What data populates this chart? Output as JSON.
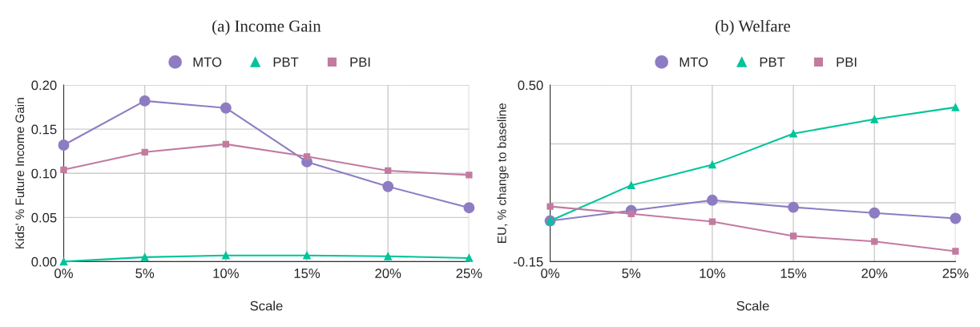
{
  "chart_data": [
    {
      "type": "line",
      "title": "(a) Income Gain",
      "xlabel": "Scale",
      "ylabel": "Kids' % Future Income Gain",
      "categories": [
        "0%",
        "5%",
        "10%",
        "15%",
        "20%",
        "25%"
      ],
      "ylim": [
        0,
        0.2
      ],
      "yticks": [
        {
          "value": 0,
          "label": "0.00"
        },
        {
          "value": 0.05,
          "label": "0.05"
        },
        {
          "value": 0.1,
          "label": "0.10"
        },
        {
          "value": 0.15,
          "label": "0.15"
        },
        {
          "value": 0.2,
          "label": "0.20"
        }
      ],
      "grid": true,
      "legend": "top",
      "series": [
        {
          "name": "MTO",
          "color": "#8e7cc3",
          "marker": "circle",
          "values": [
            0.132,
            0.182,
            0.174,
            0.113,
            0.085,
            0.061
          ]
        },
        {
          "name": "PBT",
          "color": "#00c49a",
          "marker": "triangle",
          "values": [
            0.0,
            0.005,
            0.007,
            0.007,
            0.006,
            0.004
          ]
        },
        {
          "name": "PBI",
          "color": "#c27ba0",
          "marker": "square",
          "values": [
            0.104,
            0.124,
            0.133,
            0.119,
            0.103,
            0.098
          ]
        }
      ]
    },
    {
      "type": "line",
      "title": "(b) Welfare",
      "xlabel": "Scale",
      "ylabel": "EU, % change to baseline",
      "categories": [
        "0%",
        "5%",
        "10%",
        "15%",
        "20%",
        "25%"
      ],
      "ylim": [
        -0.15,
        0.5
      ],
      "yticks": [
        {
          "value": -0.15,
          "label": "-0.15"
        },
        {
          "value": 0.0667,
          "label": null
        },
        {
          "value": 0.2833,
          "label": null
        },
        {
          "value": 0.5,
          "label": "0.50"
        }
      ],
      "grid": true,
      "legend": "top",
      "series": [
        {
          "name": "MTO",
          "color": "#8e7cc3",
          "marker": "circle",
          "values": [
            0.0,
            0.038,
            0.076,
            0.05,
            0.029,
            0.009
          ]
        },
        {
          "name": "PBT",
          "color": "#00c49a",
          "marker": "triangle",
          "values": [
            0.0,
            0.131,
            0.207,
            0.321,
            0.374,
            0.418
          ]
        },
        {
          "name": "PBI",
          "color": "#c27ba0",
          "marker": "square",
          "values": [
            0.053,
            0.026,
            -0.003,
            -0.056,
            -0.076,
            -0.112
          ]
        }
      ]
    }
  ]
}
